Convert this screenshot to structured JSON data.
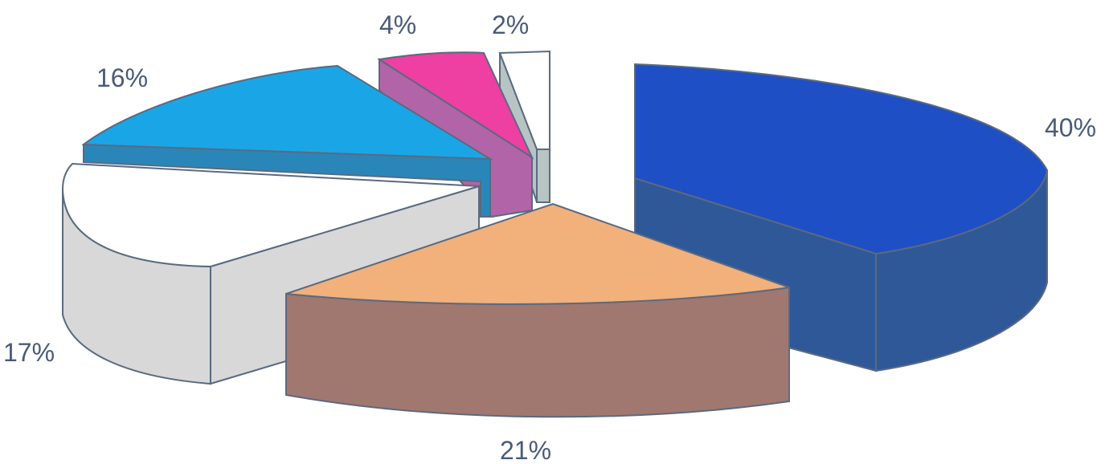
{
  "chart_data": {
    "type": "pie",
    "title": "",
    "slices": [
      {
        "label": "40%",
        "value": 40,
        "color": "#1f4fc4",
        "side_color": "#2f5898"
      },
      {
        "label": "21%",
        "value": 21,
        "color": "#f2b07a",
        "side_color": "#a07870"
      },
      {
        "label": "17%",
        "value": 17,
        "color": "#ffffff",
        "side_color": "#d8d8d8"
      },
      {
        "label": "16%",
        "value": 16,
        "color": "#1aa6e6",
        "side_color": "#2a86b8"
      },
      {
        "label": "4%",
        "value": 4,
        "color": "#ee3fa2",
        "side_color": "#b264a8"
      },
      {
        "label": "2%",
        "value": 2,
        "color": "#ffffff",
        "side_color": "#b8c4c4"
      }
    ]
  }
}
